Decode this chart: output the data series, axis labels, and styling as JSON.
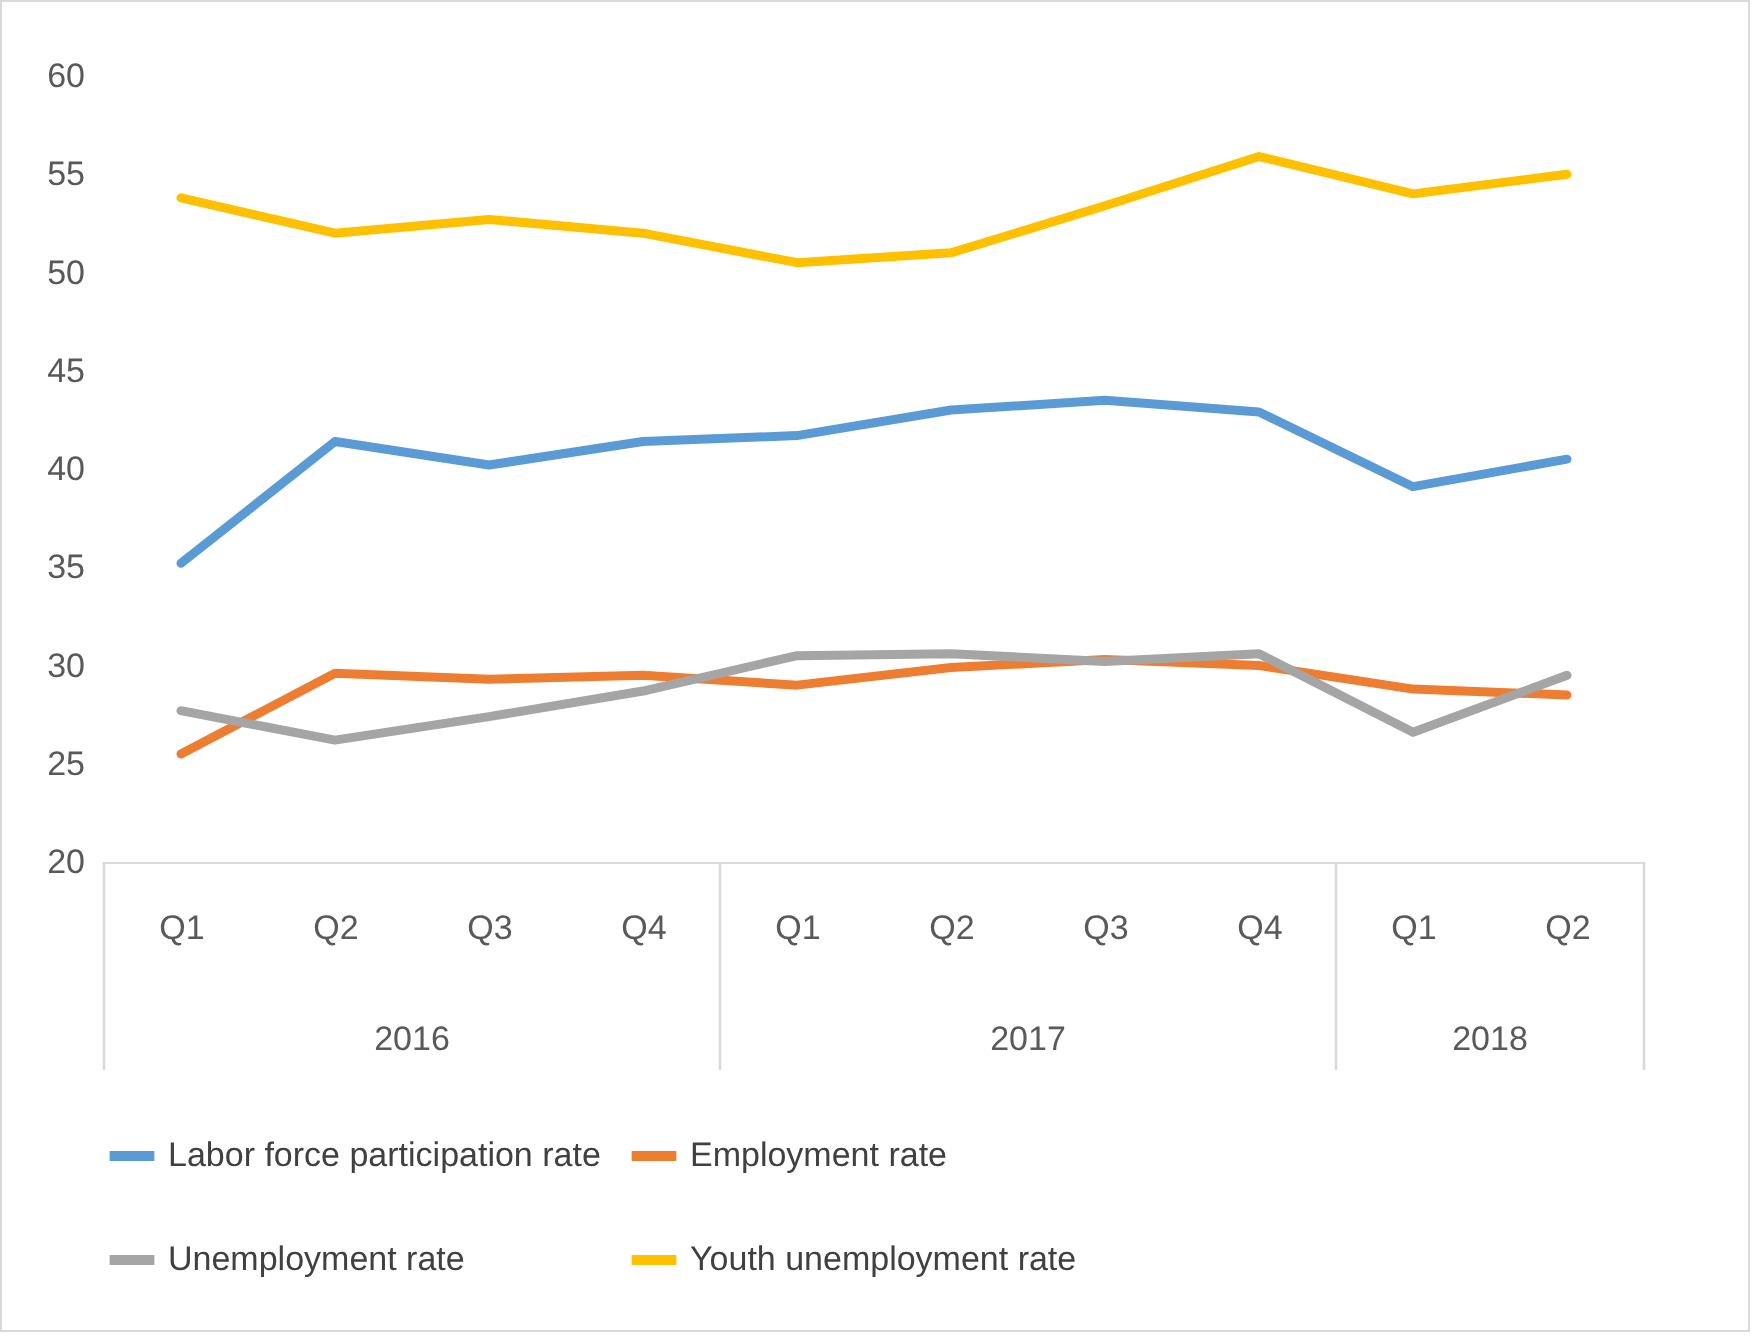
{
  "chart_data": {
    "type": "line",
    "categories": [
      "Q1",
      "Q2",
      "Q3",
      "Q4",
      "Q1",
      "Q2",
      "Q3",
      "Q4",
      "Q1",
      "Q2"
    ],
    "annotations": [
      "2016",
      "2017",
      "2018"
    ],
    "series": [
      {
        "name": "Labor force participation rate",
        "color": "#5b9bd5",
        "values": [
          35.2,
          41.4,
          40.2,
          41.4,
          41.7,
          43.0,
          43.5,
          42.9,
          39.1,
          40.5
        ]
      },
      {
        "name": "Employment rate",
        "color": "#ed7d31",
        "values": [
          25.5,
          29.6,
          29.3,
          29.5,
          29.0,
          29.9,
          30.3,
          30.0,
          28.8,
          28.5
        ]
      },
      {
        "name": "Unemployment rate",
        "color": "#a5a5a5",
        "values": [
          27.7,
          26.2,
          27.4,
          28.7,
          30.5,
          30.6,
          30.2,
          30.6,
          26.6,
          29.5
        ]
      },
      {
        "name": "Youth unemployment rate",
        "color": "#ffc000",
        "values": [
          53.8,
          52.0,
          52.7,
          52.0,
          50.5,
          51.0,
          53.4,
          55.9,
          54.0,
          55.0
        ]
      }
    ],
    "ylim": [
      20,
      60
    ],
    "yticks": [
      20,
      25,
      30,
      35,
      40,
      45,
      50,
      55,
      60
    ],
    "grid": false,
    "legend": "bottom",
    "marker": "none",
    "line_style": "solid"
  }
}
